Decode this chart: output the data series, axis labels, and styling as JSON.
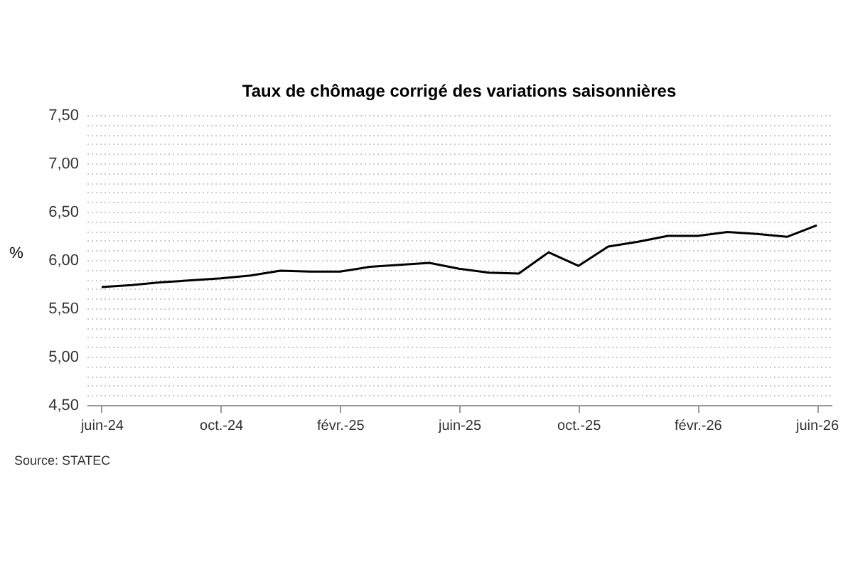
{
  "chart_data": {
    "type": "line",
    "title": "Taux de chômage corrigé des variations saisonnières",
    "ylabel": "%",
    "categories": [
      "juin-24",
      null,
      null,
      null,
      "oct.-24",
      null,
      null,
      null,
      "févr.-25",
      null,
      null,
      null,
      "juin-25",
      null,
      null,
      null,
      "oct.-25",
      null,
      null,
      null,
      "févr.-26",
      null,
      null,
      null,
      "juin-26"
    ],
    "series": [
      {
        "color": "#000000",
        "values": [
          5.72,
          5.74,
          5.77,
          5.79,
          5.81,
          5.84,
          5.89,
          5.88,
          5.88,
          5.93,
          5.95,
          5.97,
          5.91,
          5.87,
          5.86,
          6.08,
          5.94,
          6.14,
          6.19,
          6.25,
          6.25,
          6.29,
          6.27,
          6.24,
          6.36
        ]
      }
    ],
    "ylim": [
      4.5,
      7.5
    ],
    "yticks": [
      {
        "value": 4.5,
        "label": "4,50"
      },
      {
        "value": 4.6,
        "label": null
      },
      {
        "value": 4.7,
        "label": null
      },
      {
        "value": 4.8,
        "label": null
      },
      {
        "value": 4.9,
        "label": null
      },
      {
        "value": 5.0,
        "label": "5,00"
      },
      {
        "value": 5.1,
        "label": null
      },
      {
        "value": 5.2,
        "label": null
      },
      {
        "value": 5.3,
        "label": null
      },
      {
        "value": 5.4,
        "label": null
      },
      {
        "value": 5.5,
        "label": "5,50"
      },
      {
        "value": 5.6,
        "label": null
      },
      {
        "value": 5.7,
        "label": null
      },
      {
        "value": 5.8,
        "label": null
      },
      {
        "value": 5.9,
        "label": null
      },
      {
        "value": 6.0,
        "label": "6,00"
      },
      {
        "value": 6.1,
        "label": null
      },
      {
        "value": 6.2,
        "label": null
      },
      {
        "value": 6.3,
        "label": null
      },
      {
        "value": 6.4,
        "label": null
      },
      {
        "value": 6.5,
        "label": "6,50"
      },
      {
        "value": 6.6,
        "label": null
      },
      {
        "value": 6.7,
        "label": null
      },
      {
        "value": 6.8,
        "label": null
      },
      {
        "value": 6.9,
        "label": null
      },
      {
        "value": 7.0,
        "label": "7,00"
      },
      {
        "value": 7.1,
        "label": null
      },
      {
        "value": 7.2,
        "label": null
      },
      {
        "value": 7.3,
        "label": null
      },
      {
        "value": 7.4,
        "label": null
      },
      {
        "value": 7.5,
        "label": "7,50"
      }
    ],
    "grid": "y",
    "legend": false,
    "marker": "none",
    "line_style": "solid",
    "annotations": [
      "Source: STATEC"
    ]
  }
}
